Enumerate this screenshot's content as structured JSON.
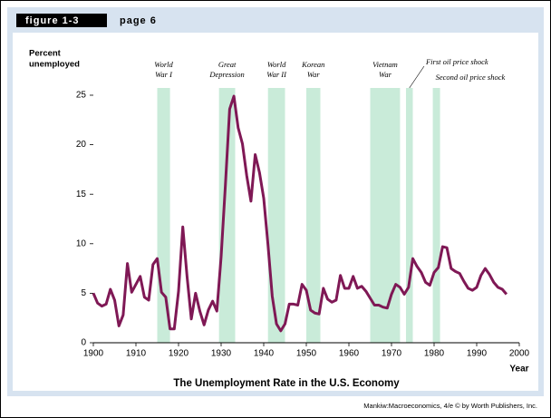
{
  "header": {
    "figure": "figure 1-3",
    "page": "page 6"
  },
  "chart_data": {
    "type": "line",
    "title": "The Unemployment Rate in the U.S. Economy",
    "y_label_lines": [
      "Percent",
      "unemployed"
    ],
    "x_label": "Year",
    "xlim": [
      1900,
      2000
    ],
    "xticks": [
      1900,
      1910,
      1920,
      1930,
      1940,
      1950,
      1960,
      1970,
      1980,
      1990,
      2000
    ],
    "ylim": [
      0,
      25
    ],
    "yticks": [
      0,
      5,
      10,
      15,
      20,
      25
    ],
    "bands_color": "#c9ebd9",
    "bands": [
      {
        "label_lines": [
          "World",
          "War I"
        ],
        "start": 1915,
        "end": 1918
      },
      {
        "label_lines": [
          "Great",
          "Depression"
        ],
        "start": 1929.5,
        "end": 1933.3
      },
      {
        "label_lines": [
          "World",
          "War II"
        ],
        "start": 1941,
        "end": 1945
      },
      {
        "label_lines": [
          "Korean",
          "War"
        ],
        "start": 1950,
        "end": 1953.3
      },
      {
        "label_lines": [
          "Vietnam",
          "War"
        ],
        "start": 1965,
        "end": 1972
      },
      {
        "label_lines": [
          "First oil price shock"
        ],
        "start": 1973.4,
        "end": 1975
      },
      {
        "label_lines": [
          "Second oil price shock"
        ],
        "start": 1979.7,
        "end": 1981.4
      }
    ],
    "series": [
      {
        "color": "#7f1855",
        "x": [
          1900,
          1901,
          1902,
          1903,
          1904,
          1905,
          1906,
          1907,
          1908,
          1909,
          1910,
          1911,
          1912,
          1913,
          1914,
          1915,
          1916,
          1917,
          1918,
          1919,
          1920,
          1921,
          1922,
          1923,
          1924,
          1925,
          1926,
          1927,
          1928,
          1929,
          1930,
          1931,
          1932,
          1933,
          1934,
          1935,
          1936,
          1937,
          1938,
          1939,
          1940,
          1941,
          1942,
          1943,
          1944,
          1945,
          1946,
          1947,
          1948,
          1949,
          1950,
          1951,
          1952,
          1953,
          1954,
          1955,
          1956,
          1957,
          1958,
          1959,
          1960,
          1961,
          1962,
          1963,
          1964,
          1965,
          1966,
          1967,
          1968,
          1969,
          1970,
          1971,
          1972,
          1973,
          1974,
          1975,
          1976,
          1977,
          1978,
          1979,
          1980,
          1981,
          1982,
          1983,
          1984,
          1985,
          1986,
          1987,
          1988,
          1989,
          1990,
          1991,
          1992,
          1993,
          1994,
          1995,
          1996,
          1997
        ],
        "values": [
          5.0,
          4.0,
          3.7,
          3.9,
          5.4,
          4.3,
          1.7,
          2.8,
          8.0,
          5.1,
          5.9,
          6.7,
          4.6,
          4.3,
          7.9,
          8.5,
          5.1,
          4.6,
          1.4,
          1.4,
          5.2,
          11.7,
          6.7,
          2.4,
          5.0,
          3.2,
          1.8,
          3.3,
          4.2,
          3.2,
          8.7,
          15.9,
          23.6,
          24.9,
          21.7,
          20.1,
          16.9,
          14.3,
          19.0,
          17.2,
          14.6,
          9.9,
          4.7,
          1.9,
          1.2,
          1.9,
          3.9,
          3.9,
          3.8,
          5.9,
          5.3,
          3.3,
          3.0,
          2.9,
          5.5,
          4.4,
          4.1,
          4.3,
          6.8,
          5.5,
          5.5,
          6.7,
          5.5,
          5.7,
          5.2,
          4.5,
          3.8,
          3.8,
          3.6,
          3.5,
          4.9,
          5.9,
          5.6,
          4.9,
          5.6,
          8.5,
          7.7,
          7.1,
          6.1,
          5.8,
          7.1,
          7.6,
          9.7,
          9.6,
          7.5,
          7.2,
          7.0,
          6.2,
          5.5,
          5.3,
          5.6,
          6.8,
          7.5,
          6.9,
          6.1,
          5.6,
          5.4,
          4.9
        ]
      }
    ]
  },
  "credit": "Mankiw:Macroeconomics, 4/e © by Worth Publishers, Inc."
}
